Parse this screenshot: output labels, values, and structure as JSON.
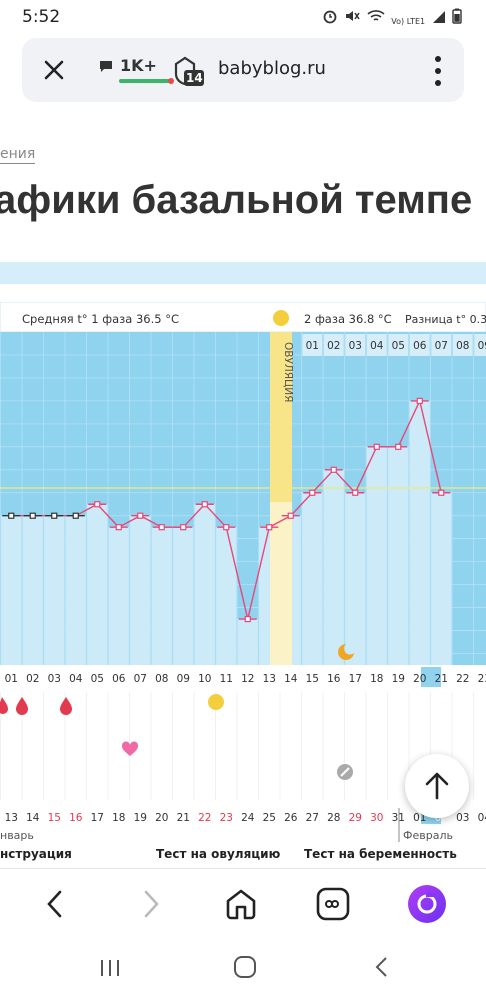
{
  "status": {
    "time": "5:52",
    "network": "Vo) LTE1"
  },
  "browser": {
    "comments": "1K+",
    "tabs_count": "14",
    "domain": "babyblog.ru"
  },
  "breadcrumb": "ения",
  "page_title": "афики базальной темпе",
  "chart": {
    "phase1": "Средняя t° 1 фаза 36.5 °C",
    "phase2": "2 фаза 36.8 °C",
    "diff": "Разница t° 0.3 °C",
    "ovulation_label": "ОВУЛЯЦИЯ",
    "cycle_days": [
      "01",
      "02",
      "03",
      "04",
      "05",
      "06",
      "07",
      "08",
      "09",
      "10",
      "11",
      "12",
      "13",
      "14",
      "15",
      "16",
      "17",
      "18",
      "19",
      "20",
      "21",
      "22",
      "23"
    ],
    "cycle_day_highlight": "21",
    "after_ovulation_days": [
      "01",
      "02",
      "03",
      "04",
      "05",
      "06",
      "07",
      "08",
      "09"
    ],
    "dates": [
      "13",
      "14",
      "15",
      "16",
      "17",
      "18",
      "19",
      "20",
      "21",
      "22",
      "23",
      "24",
      "25",
      "26",
      "27",
      "28",
      "29",
      "30",
      "31",
      "01",
      "02",
      "03",
      "04"
    ],
    "date_red": [
      "15",
      "16",
      "22",
      "23",
      "29",
      "30"
    ],
    "date_highlight": "02",
    "month_left": "нварь",
    "month_right": "Февраль",
    "colors": {
      "line": "#e8477a",
      "bar": "#cdeaf8",
      "bg": "#8fd3ef",
      "ovulation": "#f8e58a"
    }
  },
  "chart_data": {
    "type": "line",
    "x": [
      "01",
      "02",
      "03",
      "04",
      "05",
      "06",
      "07",
      "08",
      "09",
      "10",
      "11",
      "12",
      "13",
      "14",
      "15",
      "16",
      "17",
      "18",
      "19",
      "20",
      "21"
    ],
    "y": [
      36.5,
      36.5,
      36.5,
      36.5,
      36.55,
      36.45,
      36.5,
      36.45,
      36.45,
      36.55,
      36.45,
      36.05,
      36.45,
      36.5,
      36.6,
      36.7,
      36.6,
      36.8,
      36.8,
      37.0,
      36.6
    ],
    "coverline": 36.55
  },
  "legend": {
    "menstruation": "нструация",
    "ovulation_test": "Тест на овуляцию",
    "pregnancy_test": "Тест на беременность"
  },
  "fab": {
    "icon": "arrow-up-icon"
  }
}
